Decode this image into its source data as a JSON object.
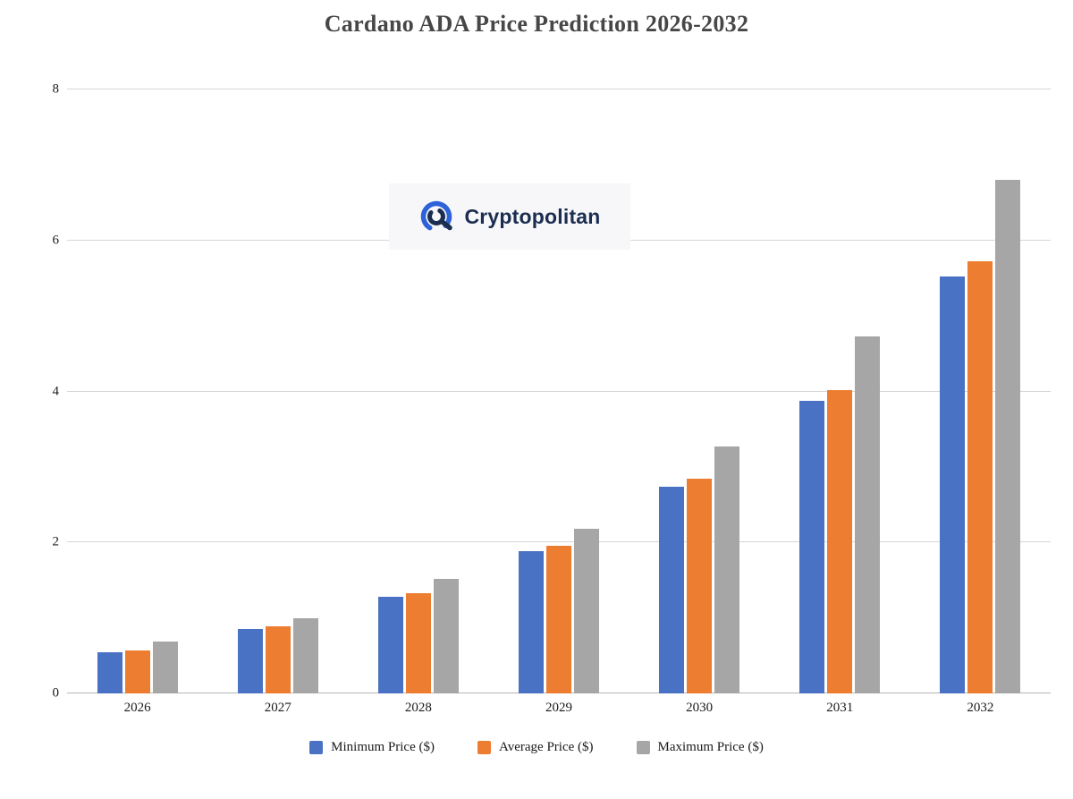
{
  "title": "Cardano ADA Price Prediction 2026-2032",
  "watermark": {
    "brand": "Cryptopolitan"
  },
  "chart_data": {
    "type": "bar",
    "title": "Cardano ADA Price Prediction 2026-2032",
    "categories": [
      "2026",
      "2027",
      "2028",
      "2029",
      "2030",
      "2031",
      "2032"
    ],
    "series": [
      {
        "name": "Minimum Price ($)",
        "color": "#4a72c4",
        "values": [
          0.55,
          0.85,
          1.28,
          1.88,
          2.74,
          3.88,
          5.52
        ]
      },
      {
        "name": "Average Price ($)",
        "color": "#ed7d31",
        "values": [
          0.57,
          0.89,
          1.33,
          1.96,
          2.84,
          4.02,
          5.72
        ]
      },
      {
        "name": "Maximum Price ($)",
        "color": "#a6a6a6",
        "values": [
          0.69,
          1.0,
          1.52,
          2.18,
          3.27,
          4.73,
          6.8
        ]
      }
    ],
    "ylim": [
      0,
      8
    ],
    "yticks": [
      0,
      2,
      4,
      6,
      8
    ],
    "grid": true,
    "legend_position": "bottom",
    "xlabel": "",
    "ylabel": ""
  }
}
